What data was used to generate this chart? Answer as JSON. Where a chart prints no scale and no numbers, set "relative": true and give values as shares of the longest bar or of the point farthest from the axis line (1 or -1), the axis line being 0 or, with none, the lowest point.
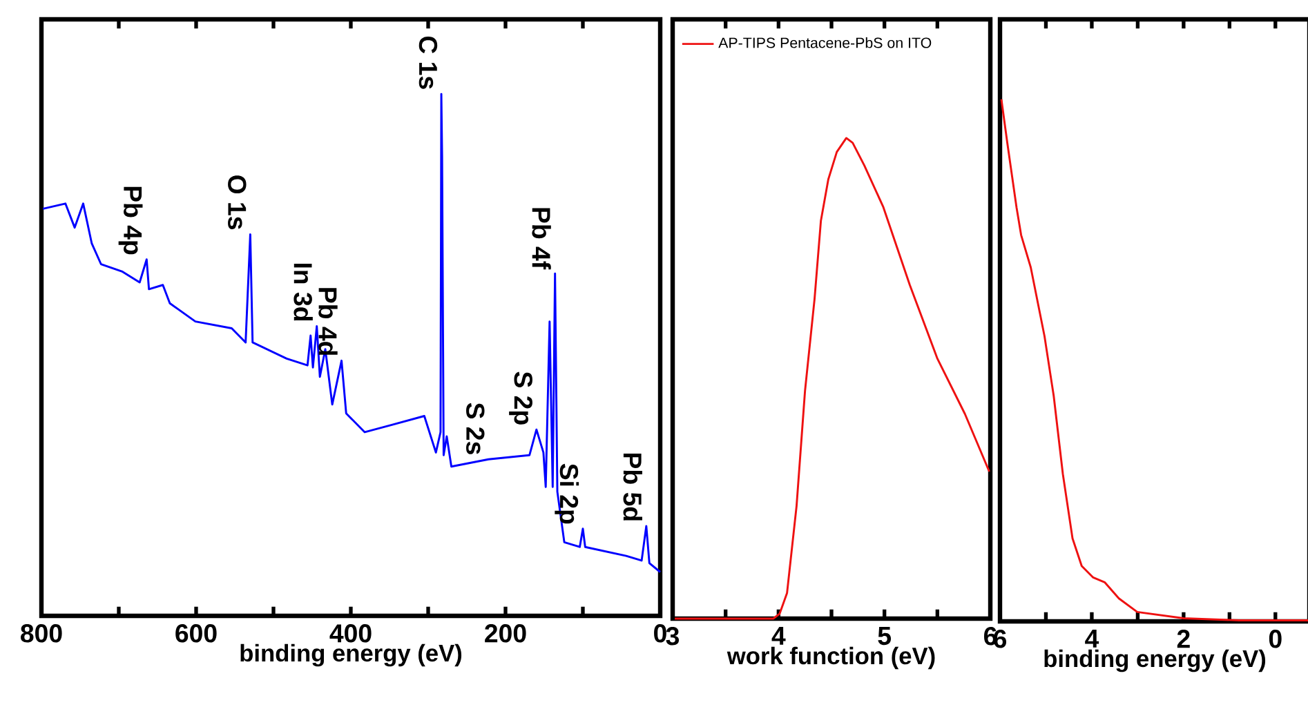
{
  "chart_data": [
    {
      "type": "line",
      "relative": true,
      "xlabel": "binding energy (eV)",
      "xlim": [
        800,
        0
      ],
      "xticks": [
        800,
        {
          "value": 700,
          "label": null
        },
        600,
        {
          "value": 500,
          "label": null
        },
        400,
        {
          "value": 300,
          "label": null
        },
        200,
        {
          "value": 100,
          "label": null
        },
        0
      ],
      "series": [
        {
          "color": "#0000ff",
          "x": [
            798,
            769,
            757,
            746,
            735,
            723,
            696,
            673,
            664,
            661,
            643,
            634,
            601,
            554,
            536,
            530,
            527,
            483,
            456,
            452,
            449,
            444,
            440,
            433,
            424,
            412,
            406,
            382,
            347,
            305,
            290,
            284,
            283,
            282,
            280,
            276,
            270,
            222,
            169,
            160,
            151,
            148,
            143,
            139,
            136,
            133,
            124,
            104,
            100,
            97,
            44,
            24,
            18,
            14,
            0
          ],
          "values": [
            0.78,
            0.79,
            0.744,
            0.79,
            0.714,
            0.674,
            0.66,
            0.639,
            0.683,
            0.626,
            0.634,
            0.599,
            0.564,
            0.551,
            0.524,
            0.731,
            0.524,
            0.493,
            0.48,
            0.537,
            0.476,
            0.555,
            0.458,
            0.511,
            0.405,
            0.489,
            0.388,
            0.352,
            0.366,
            0.383,
            0.313,
            0.352,
            1.0,
            0.88,
            0.308,
            0.344,
            0.286,
            0.3,
            0.308,
            0.357,
            0.313,
            0.247,
            0.564,
            0.247,
            0.656,
            0.238,
            0.141,
            0.132,
            0.167,
            0.132,
            0.115,
            0.106,
            0.172,
            0.101,
            0.084
          ]
        }
      ],
      "annotations": [
        {
          "text": "Pb 4p",
          "x": 664,
          "y": 0.683
        },
        {
          "text": "O 1s",
          "x": 530,
          "y": 0.731
        },
        {
          "text": "In 3d",
          "x": 444,
          "y": 0.555
        },
        {
          "text": "Pb 4d",
          "x": 412,
          "y": 0.489
        },
        {
          "text": "C 1s",
          "x": 283,
          "y": 1.0
        },
        {
          "text": "S 2s",
          "x": 222,
          "y": 0.3
        },
        {
          "text": "S 2p",
          "x": 160,
          "y": 0.357
        },
        {
          "text": "Pb 4f",
          "x": 136,
          "y": 0.656
        },
        {
          "text": "Si 2p",
          "x": 100,
          "y": 0.167
        },
        {
          "text": "Pb 5d",
          "x": 18,
          "y": 0.172
        }
      ]
    },
    {
      "type": "line",
      "relative": true,
      "xlabel": "work function (eV)",
      "xlim": [
        3,
        6
      ],
      "xticks": [
        3,
        {
          "value": 3.5,
          "label": null
        },
        4,
        {
          "value": 4.5,
          "label": null
        },
        5,
        {
          "value": 5.5,
          "label": null
        },
        6
      ],
      "legend": "top left",
      "series": [
        {
          "name": "AP-TIPS Pentacene-PbS on ITO",
          "color": "#ee1111",
          "x": [
            3.02,
            3.95,
            4.01,
            4.08,
            4.17,
            4.25,
            4.34,
            4.4,
            4.47,
            4.55,
            4.64,
            4.7,
            4.81,
            4.99,
            5.24,
            5.5,
            5.76,
            5.99
          ],
          "values": [
            0,
            0,
            0.01,
            0.053,
            0.234,
            0.474,
            0.665,
            0.828,
            0.914,
            0.971,
            1.0,
            0.99,
            0.943,
            0.856,
            0.694,
            0.541,
            0.426,
            0.306
          ]
        }
      ]
    },
    {
      "type": "line",
      "relative": true,
      "xlabel": "binding energy (eV)",
      "xlim": [
        6,
        -0.74
      ],
      "xticks": [
        6,
        {
          "value": 5,
          "label": null
        },
        4,
        {
          "value": 3,
          "label": null
        },
        2,
        {
          "value": 1,
          "label": null
        },
        0
      ],
      "series": [
        {
          "color": "#ee1111",
          "x": [
            5.97,
            5.84,
            5.64,
            5.54,
            5.33,
            5.03,
            4.83,
            4.63,
            4.42,
            4.22,
            3.97,
            3.72,
            3.41,
            3.01,
            2.0,
            0.79,
            -0.74
          ],
          "values": [
            1.0,
            0.916,
            0.793,
            0.74,
            0.678,
            0.546,
            0.432,
            0.282,
            0.159,
            0.106,
            0.084,
            0.075,
            0.044,
            0.018,
            0.006,
            0.002,
            0.002
          ]
        }
      ]
    }
  ]
}
